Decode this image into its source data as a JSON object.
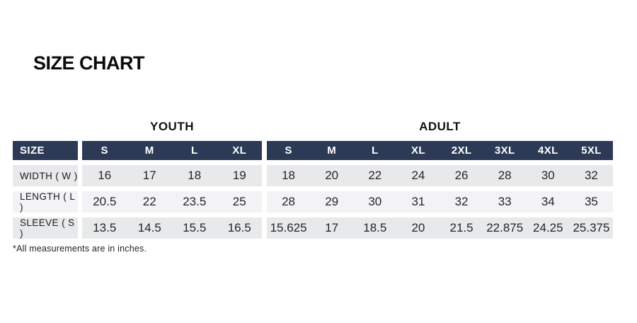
{
  "page": {
    "title": "SIZE CHART",
    "footnote": "*All measurements are in inches."
  },
  "colors": {
    "header_bg": "#2d3a56",
    "header_text": "#ffffff",
    "row_gray": "#e8e9ea",
    "row_light": "#f3f3f5",
    "title_text": "#0c0c0c"
  },
  "chart_data": {
    "type": "table",
    "title": "SIZE CHART",
    "corner_label": "SIZE",
    "units_note": "*All measurements are in inches.",
    "groups": [
      {
        "label": "YOUTH",
        "sizes": [
          "S",
          "M",
          "L",
          "XL"
        ]
      },
      {
        "label": "ADULT",
        "sizes": [
          "S",
          "M",
          "L",
          "XL",
          "2XL",
          "3XL",
          "4XL",
          "5XL"
        ]
      }
    ],
    "rows": [
      {
        "label": "WIDTH ( W )",
        "youth": [
          16,
          17,
          18,
          19
        ],
        "adult": [
          18,
          20,
          22,
          24,
          26,
          28,
          30,
          32
        ]
      },
      {
        "label": "LENGTH ( L )",
        "youth": [
          20.5,
          22,
          23.5,
          25
        ],
        "adult": [
          28,
          29,
          30,
          31,
          32,
          33,
          34,
          35
        ]
      },
      {
        "label": "SLEEVE ( S )",
        "youth": [
          13.5,
          14.5,
          15.5,
          16.5
        ],
        "adult": [
          15.625,
          17,
          18.5,
          20,
          21.5,
          22.875,
          24.25,
          25.375
        ]
      }
    ]
  }
}
